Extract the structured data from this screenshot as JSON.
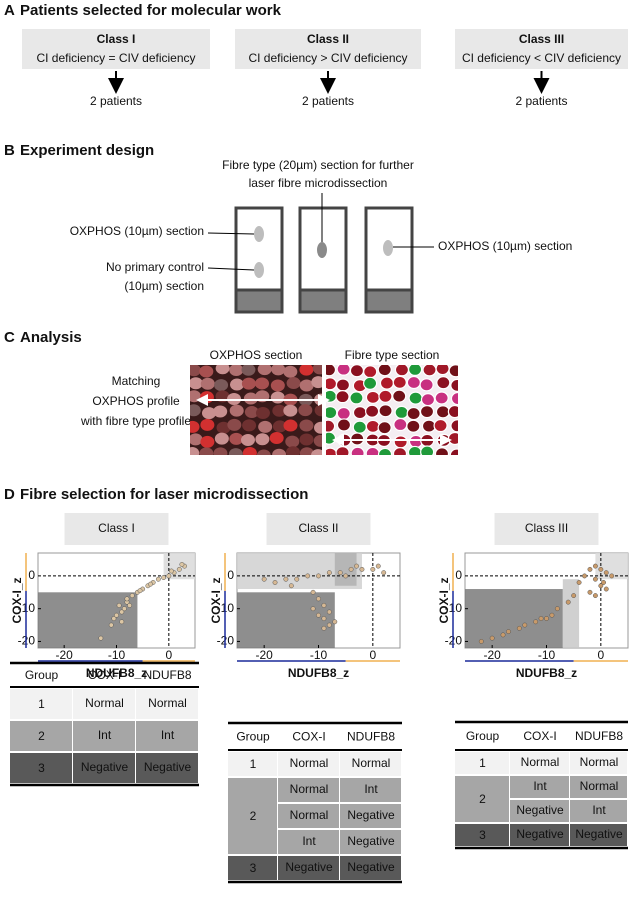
{
  "sectionA": {
    "label": "A",
    "title": "Patients selected for molecular work",
    "classes": [
      {
        "name": "Class I",
        "criterion": "CI deficiency = CIV deficiency",
        "patients": "2 patients"
      },
      {
        "name": "Class II",
        "criterion": "CI deficiency > CIV deficiency",
        "patients": "2 patients"
      },
      {
        "name": "Class III",
        "criterion": "CI deficiency < CIV deficiency",
        "patients": "2 patients"
      }
    ]
  },
  "sectionB": {
    "label": "B",
    "title": "Experiment design",
    "fibre_note": [
      "Fibre type (20µm) section for further",
      "laser fibre microdissection"
    ],
    "oxphos_left": "OXPHOS (10µm) section",
    "control": [
      "No primary control",
      "(10µm) section"
    ],
    "oxphos_right": "OXPHOS (10µm) section"
  },
  "sectionC": {
    "label": "C",
    "title": "Analysis",
    "oxphos_image": "OXPHOS section",
    "fibre_image": "Fibre type section",
    "matching": [
      "Matching",
      "OXPHOS profile",
      "with fibre type profile"
    ]
  },
  "sectionD": {
    "label": "D",
    "title": "Fibre selection for laser microdissection",
    "plots": [
      {
        "type": "scatter",
        "title": "Class I",
        "xlabel": "NDUFB8_z",
        "ylabel": "COX-I_z",
        "xlim": [
          -25,
          5
        ],
        "ylim": [
          -22,
          7
        ],
        "xticks": [
          -20,
          -10,
          0
        ],
        "yticks": [
          0,
          -10,
          -20
        ],
        "color": "#dcc6a4",
        "regions": [
          {
            "x": [
              -25,
              -6
            ],
            "y": [
              -22,
              -5
            ],
            "color": "#7a7a7a"
          },
          {
            "x": [
              -1,
              5
            ],
            "y": [
              -1,
              7
            ],
            "color": "#d9d9d9"
          }
        ],
        "x": [
          -13,
          -11,
          -10.5,
          -10,
          -9,
          -9.5,
          -8,
          -8.5,
          -7,
          -6,
          -5,
          -4,
          -3,
          -2,
          -1,
          0,
          1,
          2,
          3,
          -8,
          -9,
          -7.5,
          -5.5,
          -3.5,
          0.5,
          2.5
        ],
        "y": [
          -19,
          -15,
          -13,
          -12,
          -11,
          -9,
          -8,
          -10,
          -6,
          -5,
          -4,
          -3,
          -2,
          -1,
          -0.5,
          0,
          1,
          2,
          3,
          -7,
          -14,
          -9,
          -4.5,
          -2.5,
          1.5,
          3.5
        ]
      },
      {
        "type": "scatter",
        "title": "Class II",
        "xlabel": "NDUFB8_z",
        "ylabel": "COX-I_z",
        "xlim": [
          -25,
          5
        ],
        "ylim": [
          -22,
          7
        ],
        "xticks": [
          -20,
          -10,
          0
        ],
        "yticks": [
          0,
          -10,
          -20
        ],
        "color": "#d6b894",
        "regions": [
          {
            "x": [
              -25,
              -7
            ],
            "y": [
              -22,
              -5
            ],
            "color": "#7a7a7a"
          },
          {
            "x": [
              -25,
              -2
            ],
            "y": [
              -4,
              7
            ],
            "color": "#d0d0d0"
          },
          {
            "x": [
              -7,
              -3
            ],
            "y": [
              -3,
              7
            ],
            "color": "#b0b0b0"
          }
        ],
        "x": [
          -20,
          -18,
          -16,
          -14,
          -12,
          -10,
          -8,
          -6,
          -4,
          -2,
          0,
          1,
          2,
          -11,
          -10,
          -9,
          -8,
          -10,
          -9,
          -8,
          -9,
          -7,
          -11,
          -15,
          -5,
          -3
        ],
        "y": [
          -1,
          -2,
          -1,
          -1,
          0,
          0,
          1,
          1,
          2,
          2,
          2,
          3,
          1,
          -5,
          -7,
          -9,
          -11,
          -12,
          -13,
          -15,
          -16,
          -14,
          -10,
          -3,
          0,
          3
        ]
      },
      {
        "type": "scatter",
        "title": "Class III",
        "xlabel": "NDUFB8_z",
        "ylabel": "COX-I_z",
        "xlim": [
          -25,
          5
        ],
        "ylim": [
          -22,
          7
        ],
        "xticks": [
          -20,
          -10,
          0
        ],
        "yticks": [
          0,
          -10,
          -20
        ],
        "color": "#c89a6a",
        "regions": [
          {
            "x": [
              -25,
              -7
            ],
            "y": [
              -22,
              -4
            ],
            "color": "#7a7a7a"
          },
          {
            "x": [
              -7,
              -4
            ],
            "y": [
              -22,
              -1
            ],
            "color": "#c8c8c8"
          },
          {
            "x": [
              -1,
              5
            ],
            "y": [
              -1,
              7
            ],
            "color": "#d9d9d9"
          }
        ],
        "x": [
          -22,
          -20,
          -18,
          -17,
          -15,
          -14,
          -12,
          -11,
          -10,
          -9,
          -8,
          -6,
          -5,
          -4,
          -3,
          -2,
          -1,
          0,
          1,
          2,
          -1,
          0,
          1,
          -2,
          -1,
          0.5
        ],
        "y": [
          -20,
          -19,
          -18,
          -17,
          -16,
          -15,
          -14,
          -13,
          -13,
          -12,
          -10,
          -8,
          -6,
          -2,
          0,
          2,
          3,
          2,
          1,
          0,
          -1,
          -3,
          -4,
          -5,
          -6,
          -2
        ]
      }
    ],
    "tables": [
      {
        "header": [
          "Group",
          "COX-I",
          "NDUFB8"
        ],
        "groups": [
          {
            "group": "1",
            "rows": [
              [
                "Normal",
                "Normal"
              ]
            ]
          },
          {
            "group": "2",
            "rows": [
              [
                "Int",
                "Int"
              ]
            ]
          },
          {
            "group": "3",
            "rows": [
              [
                "Negative",
                "Negative"
              ]
            ]
          }
        ]
      },
      {
        "header": [
          "Group",
          "COX-I",
          "NDUFB8"
        ],
        "groups": [
          {
            "group": "1",
            "rows": [
              [
                "Normal",
                "Normal"
              ]
            ]
          },
          {
            "group": "2",
            "rows": [
              [
                "Normal",
                "Int"
              ],
              [
                "Normal",
                "Negative"
              ],
              [
                "Int",
                "Negative"
              ]
            ]
          },
          {
            "group": "3",
            "rows": [
              [
                "Negative",
                "Negative"
              ]
            ]
          }
        ]
      },
      {
        "header": [
          "Group",
          "COX-I",
          "NDUFB8"
        ],
        "groups": [
          {
            "group": "1",
            "rows": [
              [
                "Normal",
                "Normal"
              ]
            ]
          },
          {
            "group": "2",
            "rows": [
              [
                "Int",
                "Normal"
              ],
              [
                "Negative",
                "Int"
              ]
            ]
          },
          {
            "group": "3",
            "rows": [
              [
                "Negative",
                "Negative"
              ]
            ]
          }
        ]
      }
    ]
  }
}
